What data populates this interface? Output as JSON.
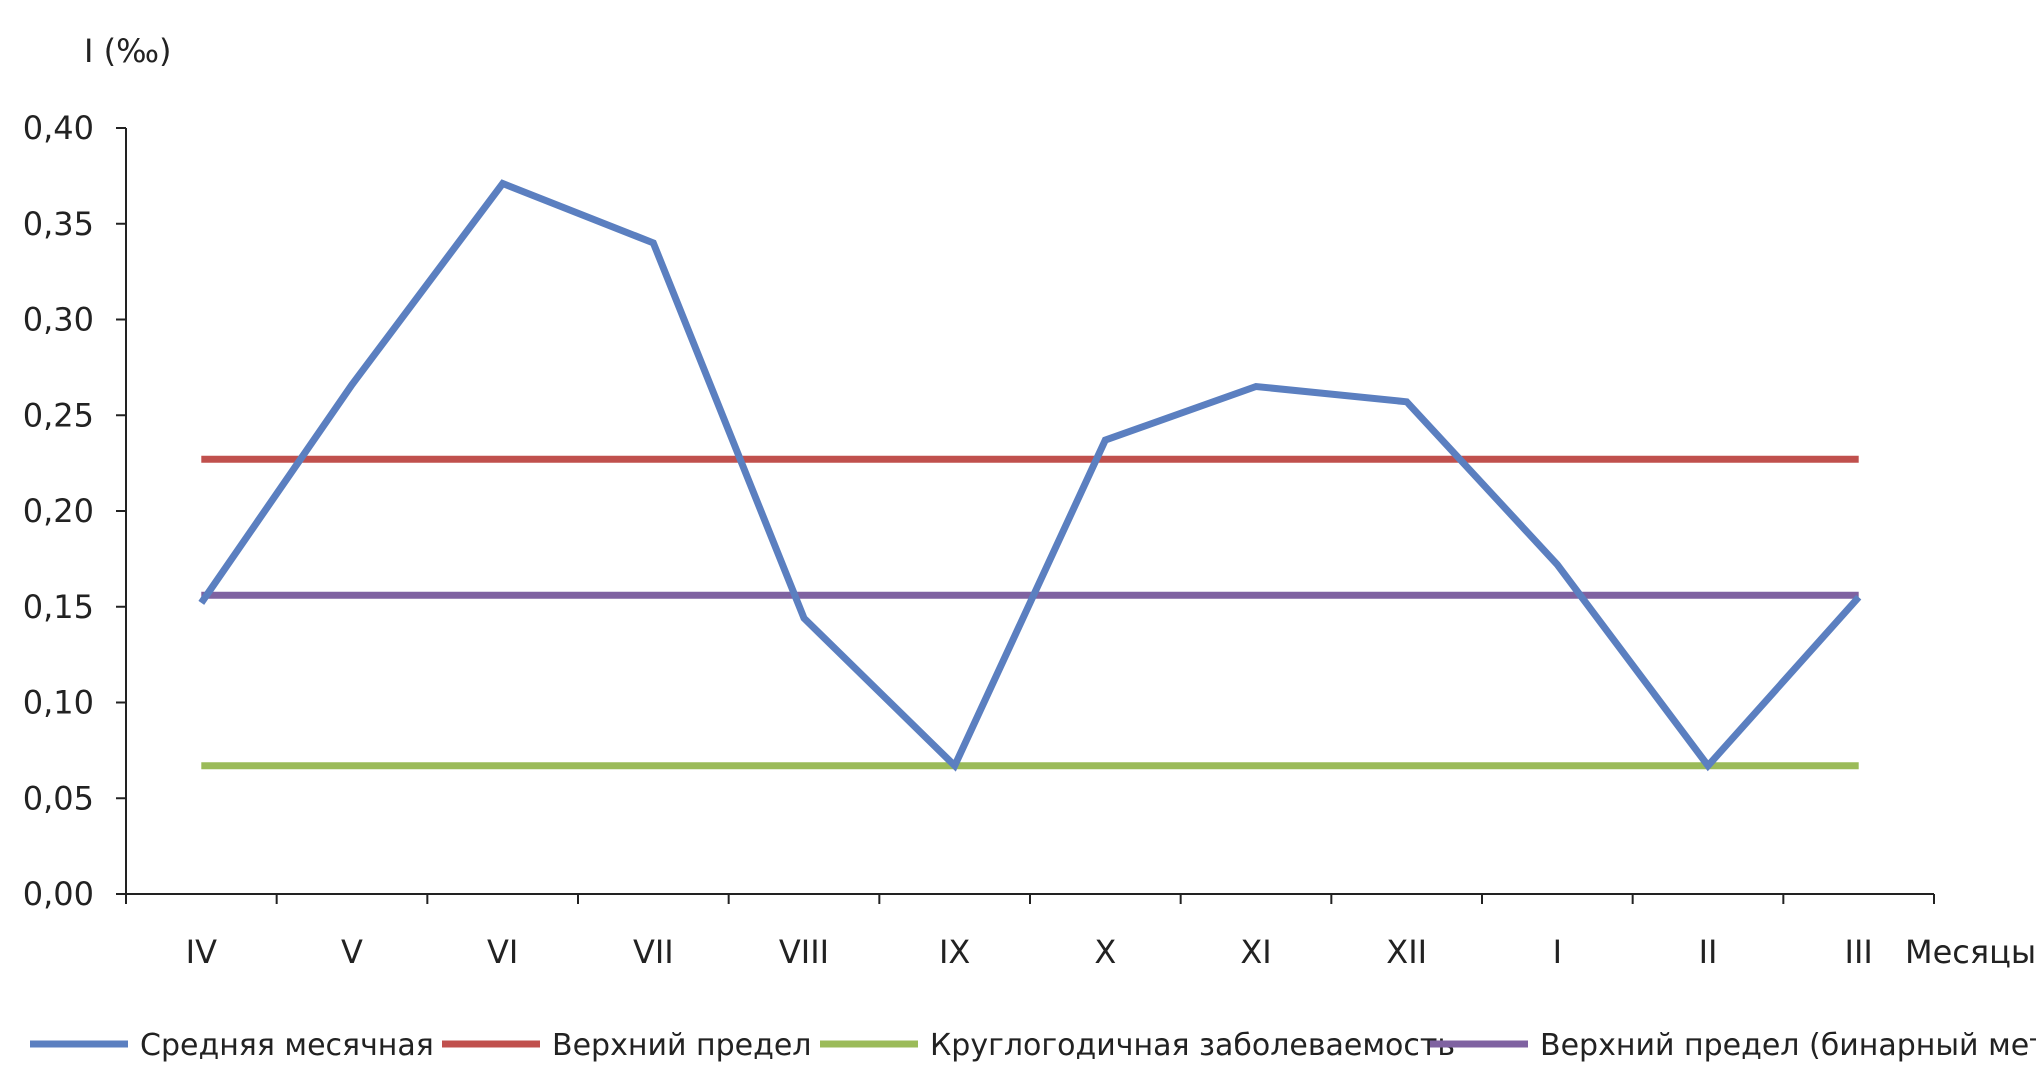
{
  "chart_data": {
    "type": "line",
    "title": "",
    "ylabel": "I (‰)",
    "xlabel": "Месяцы",
    "categories": [
      "IV",
      "V",
      "VI",
      "VII",
      "VIII",
      "IX",
      "X",
      "XI",
      "XII",
      "I",
      "II",
      "III"
    ],
    "y_ticks": [
      "0,00",
      "0,05",
      "0,10",
      "0,15",
      "0,20",
      "0,25",
      "0,30",
      "0,35",
      "0,40"
    ],
    "ylim": [
      0,
      0.4
    ],
    "grid": false,
    "legend_position": "bottom",
    "series": [
      {
        "name": "Средняя месячная",
        "color": "#5b7fc0",
        "values": [
          0.152,
          0.266,
          0.371,
          0.34,
          0.144,
          0.067,
          0.237,
          0.265,
          0.257,
          0.172,
          0.067,
          0.155
        ]
      },
      {
        "name": "Верхний предел",
        "color": "#c0504d",
        "values": [
          0.227,
          0.227,
          0.227,
          0.227,
          0.227,
          0.227,
          0.227,
          0.227,
          0.227,
          0.227,
          0.227,
          0.227
        ]
      },
      {
        "name": "Круглогодичная заболеваемость",
        "color": "#9bbb59",
        "values": [
          0.067,
          0.067,
          0.067,
          0.067,
          0.067,
          0.067,
          0.067,
          0.067,
          0.067,
          0.067,
          0.067,
          0.067
        ]
      },
      {
        "name": "Верхний предел (бинарный метод)",
        "color": "#7f62a1",
        "values": [
          0.156,
          0.156,
          0.156,
          0.156,
          0.156,
          0.156,
          0.156,
          0.156,
          0.156,
          0.156,
          0.156,
          0.156
        ]
      }
    ]
  }
}
